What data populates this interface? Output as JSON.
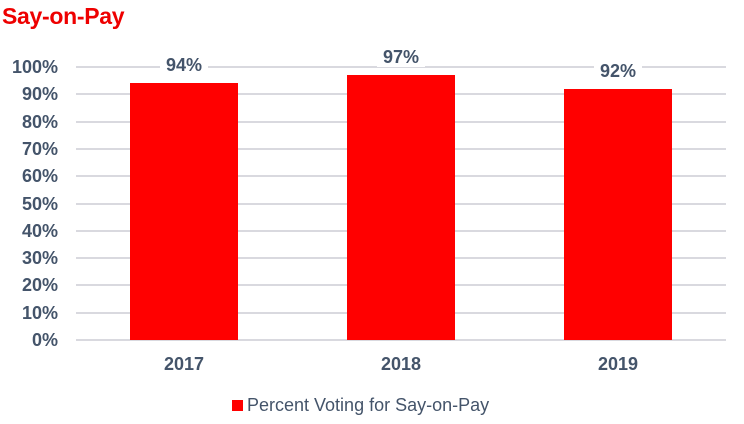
{
  "chart_data": {
    "type": "bar",
    "title": "Say-on-Pay",
    "categories": [
      "2017",
      "2018",
      "2019"
    ],
    "series": [
      {
        "name": "Percent Voting for Say-on-Pay",
        "values": [
          94,
          97,
          92
        ],
        "color": "#ff0000"
      }
    ],
    "data_labels": [
      "94%",
      "97%",
      "92%"
    ],
    "xlabel": "",
    "ylabel": "",
    "ylim": [
      0,
      100
    ],
    "yticks": [
      "0%",
      "10%",
      "20%",
      "30%",
      "40%",
      "50%",
      "60%",
      "70%",
      "80%",
      "90%",
      "100%"
    ],
    "grid": true,
    "legend_position": "bottom"
  },
  "colors": {
    "title": "#ee0000",
    "bar": "#ff0000",
    "axis_text": "#44546a",
    "grid": "#d9d9df"
  }
}
